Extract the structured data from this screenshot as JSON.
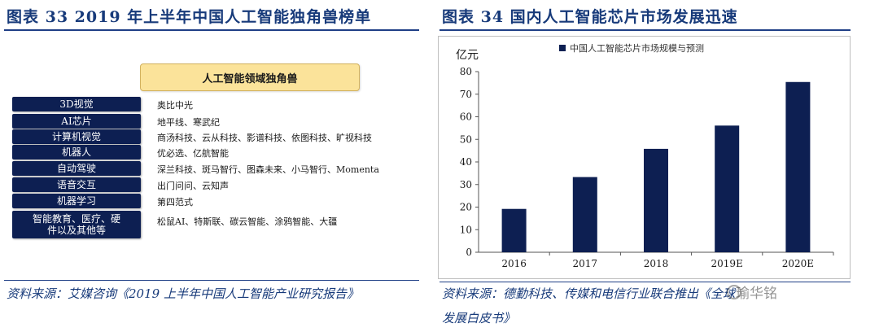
{
  "left": {
    "title": "图表 33   2019 年上半年中国人工智能独角兽榜单",
    "header": "人工智能领域独角兽",
    "rows": [
      {
        "category": "3D视觉",
        "companies": "奥比中光"
      },
      {
        "category": "AI芯片",
        "companies": "地平线、寒武纪"
      },
      {
        "category": "计算机视觉",
        "companies": "商汤科技、云从科技、影谱科技、依图科技、旷视科技"
      },
      {
        "category": "机器人",
        "companies": "优必选、亿航智能"
      },
      {
        "category": "自动驾驶",
        "companies": "深兰科技、斑马智行、图森未来、小马智行、Momenta"
      },
      {
        "category": "语音交互",
        "companies": "出门问问、云知声"
      },
      {
        "category": "机器学习",
        "companies": "第四范式"
      },
      {
        "category": "智能教育、医疗、硬件以及其他等",
        "companies": "松鼠AI、特斯联、碳云智能、涂鸦智能、大疆"
      }
    ],
    "source": "资料来源：艾媒咨询《2019 上半年中国人工智能产业研究报告》"
  },
  "right": {
    "title": "图表 34    国内人工智能芯片市场发展迅速",
    "source_line1": "资料来源：德勤科技、传媒和电信行业联合推出《全球",
    "source_line2": "发展白皮书》",
    "watermark": "瑜华铭"
  },
  "chart_data": {
    "type": "bar",
    "categories": [
      "2016",
      "2017",
      "2018",
      "2019E",
      "2020E"
    ],
    "series": [
      {
        "name": "中国人工智能芯片市场规模与预测",
        "values": [
          19.2,
          33.3,
          45.8,
          56.1,
          75.4
        ],
        "color": "#0d1f52"
      }
    ],
    "ylabel": "亿元",
    "ylim": [
      0,
      80
    ],
    "yticks": [
      0,
      10,
      20,
      30,
      40,
      50,
      60,
      70,
      80
    ],
    "legend_position": "top",
    "grid": false
  }
}
